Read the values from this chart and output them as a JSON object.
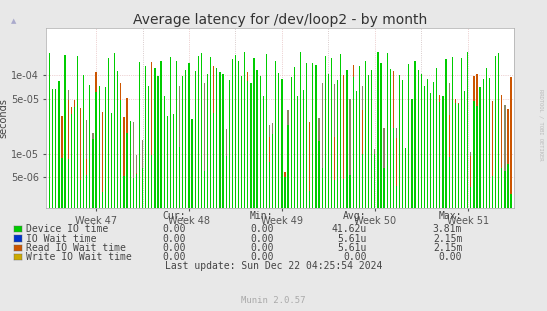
{
  "title": "Average latency for /dev/loop2 - by month",
  "ylabel": "seconds",
  "background_color": "#e8e8e8",
  "plot_background": "#ffffff",
  "grid_color": "#ddbbbb",
  "week_labels": [
    "Week 47",
    "Week 48",
    "Week 49",
    "Week 50",
    "Week 51"
  ],
  "ylim_min": 2e-06,
  "ylim_max": 0.0004,
  "yticks": [
    5e-06,
    1e-05,
    5e-05,
    0.0001
  ],
  "ytick_labels": [
    "5e-06",
    "1e-05",
    "5e-05",
    "1e-04"
  ],
  "series": [
    {
      "name": "Device IO time",
      "color": "#00cc00"
    },
    {
      "name": "IO Wait time",
      "color": "#0033cc"
    },
    {
      "name": "Read IO Wait time",
      "color": "#cc5500"
    },
    {
      "name": "Write IO Wait time",
      "color": "#ccaa00"
    }
  ],
  "legend_headers": [
    "Cur:",
    "Min:",
    "Avg:",
    "Max:"
  ],
  "legend_data": [
    [
      "0.00",
      "0.00",
      "41.62u",
      "3.81m"
    ],
    [
      "0.00",
      "0.00",
      "5.61u",
      "2.15m"
    ],
    [
      "0.00",
      "0.00",
      "5.61u",
      "2.15m"
    ],
    [
      "0.00",
      "0.00",
      "0.00",
      "0.00"
    ]
  ],
  "last_update": "Last update: Sun Dec 22 04:25:54 2024",
  "munin_version": "Munin 2.0.57",
  "rrdtool_text": "RRDTOOL / TOBI OETIKER",
  "title_fontsize": 10,
  "axis_fontsize": 7,
  "legend_fontsize": 7,
  "num_bars": 150,
  "seed": 42
}
